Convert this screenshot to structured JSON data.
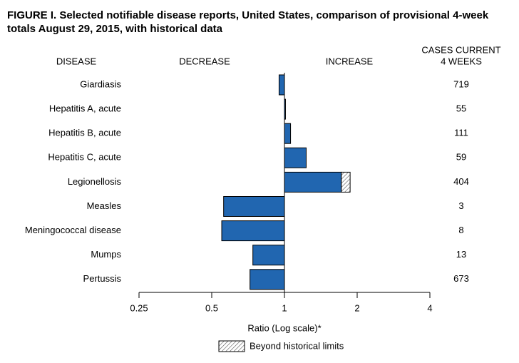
{
  "chart_data": {
    "type": "bar",
    "orientation": "horizontal",
    "title": "FIGURE I. Selected notifiable disease reports, United States, comparison of provisional 4-week totals August 29, 2015, with historical data",
    "headers": {
      "disease": "DISEASE",
      "decrease": "DECREASE",
      "increase": "INCREASE",
      "cases": [
        "CASES CURRENT",
        "4 WEEKS"
      ]
    },
    "categories": [
      "Giardiasis",
      "Hepatitis A, acute",
      "Hepatitis B, acute",
      "Hepatitis C, acute",
      "Legionellosis",
      "Measles",
      "Meningococcal disease",
      "Mumps",
      "Pertussis"
    ],
    "values": [
      0.95,
      1.01,
      1.06,
      1.23,
      1.87,
      0.56,
      0.55,
      0.74,
      0.72
    ],
    "historical_limit": [
      null,
      null,
      null,
      null,
      1.72,
      null,
      null,
      null,
      null
    ],
    "cases": [
      719,
      55,
      111,
      59,
      404,
      3,
      8,
      13,
      673
    ],
    "color": "#2166b0",
    "xscale": "log",
    "xlim": [
      0.25,
      4
    ],
    "xticks": [
      0.25,
      0.5,
      1,
      2,
      4
    ],
    "xlabel": "Ratio (Log scale)*",
    "legend": "Beyond historical limits"
  }
}
